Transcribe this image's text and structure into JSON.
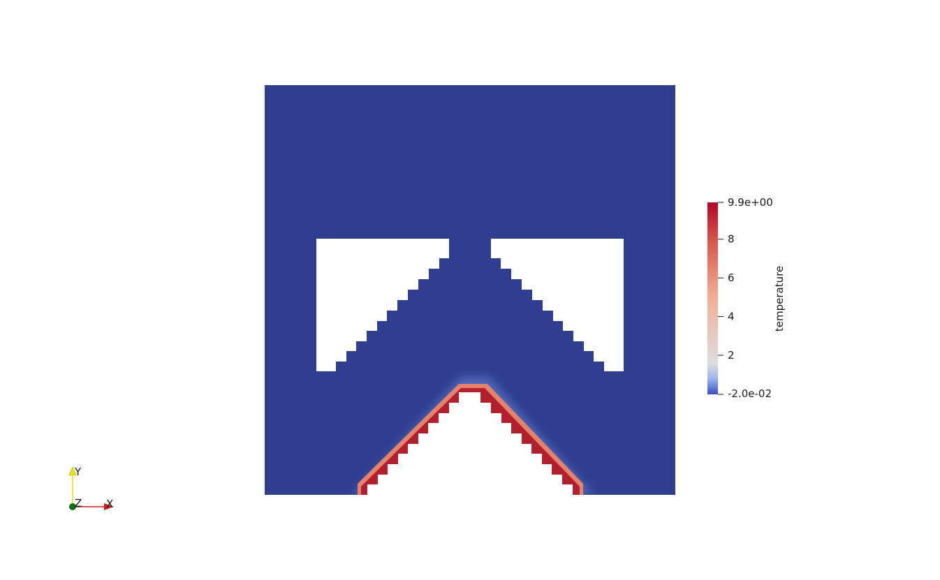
{
  "colors": {
    "field_base": "#303e8f",
    "hot": "#b21f2d",
    "warm": "#e4836b",
    "cool": "#5774c8",
    "hole": "#ffffff",
    "axis_x": "#d11a1a",
    "axis_y": "#e6e600",
    "axis_z": "#0d6e0d"
  },
  "colorbar": {
    "title": "temperature",
    "max_label": "9.9e+00",
    "min_label": "-2.0e-02",
    "range": [
      -0.02,
      9.9
    ],
    "ticks": [
      {
        "value": 8,
        "label": "8"
      },
      {
        "value": 6,
        "label": "6"
      },
      {
        "value": 4,
        "label": "4"
      },
      {
        "value": 2,
        "label": "2"
      }
    ],
    "stops": [
      "#3b4cc0",
      "#dddddd",
      "#b40426"
    ]
  },
  "axes_triad": {
    "x_label": "X",
    "y_label": "Y",
    "z_label": "Z"
  }
}
